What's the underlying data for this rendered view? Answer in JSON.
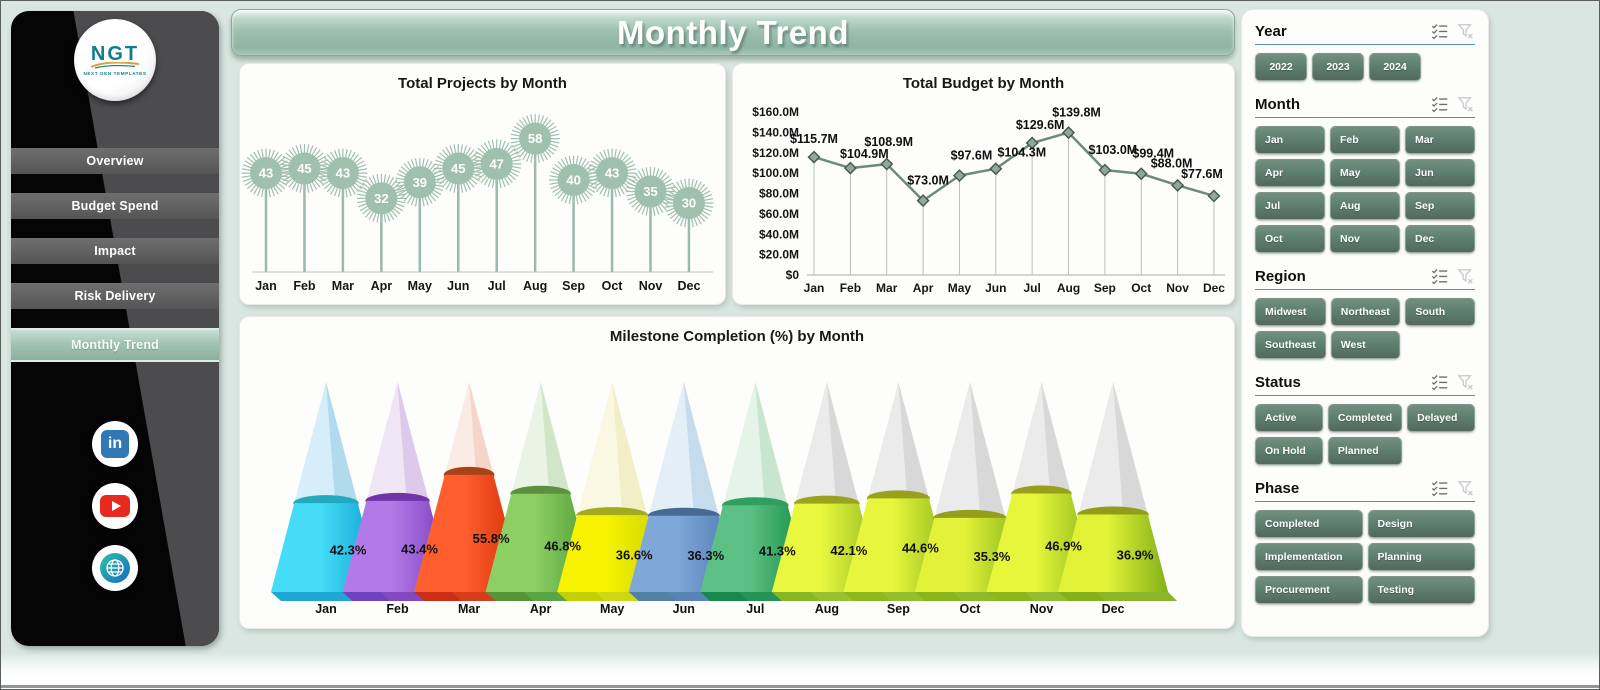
{
  "header": {
    "title": "Monthly Trend"
  },
  "sidebar": {
    "logo": {
      "text": "NGT",
      "subtext": "NEXT GEN TEMPLATES"
    },
    "nav_items": [
      {
        "label": "Overview",
        "active": false
      },
      {
        "label": "Budget Spend",
        "active": false
      },
      {
        "label": "Impact",
        "active": false
      },
      {
        "label": "Risk Delivery",
        "active": false
      },
      {
        "label": "Monthly Trend",
        "active": true
      }
    ],
    "social_icons": [
      "linkedin-icon",
      "youtube-icon",
      "website-icon"
    ]
  },
  "filters": {
    "section_icons": [
      "select-all-icon",
      "clear-filter-icon"
    ],
    "accent_underline": "#58919f",
    "button_color": "#5e8070",
    "sections": [
      {
        "title": "Year",
        "layout": "fit",
        "items": [
          "2022",
          "2023",
          "2024"
        ]
      },
      {
        "title": "Month",
        "layout": "cols-3",
        "items": [
          "Jan",
          "Feb",
          "Mar",
          "Apr",
          "May",
          "Jun",
          "Jul",
          "Aug",
          "Sep",
          "Oct",
          "Nov",
          "Dec"
        ]
      },
      {
        "title": "Region",
        "layout": "cols-3",
        "items": [
          "Midwest",
          "Northeast",
          "South",
          "Southeast",
          "West"
        ]
      },
      {
        "title": "Status",
        "layout": "cols-3",
        "items": [
          "Active",
          "Completed",
          "Delayed",
          "On Hold",
          "Planned"
        ]
      },
      {
        "title": "Phase",
        "layout": "cols-2",
        "items": [
          "Completed",
          "Design",
          "Implementation",
          "Planning",
          "Procurement",
          "Testing"
        ]
      }
    ]
  },
  "chart_data": [
    {
      "type": "lollipop",
      "title": "Total Projects by Month",
      "categories": [
        "Jan",
        "Feb",
        "Mar",
        "Apr",
        "May",
        "Jun",
        "Jul",
        "Aug",
        "Sep",
        "Oct",
        "Nov",
        "Dec"
      ],
      "values": [
        43,
        45,
        43,
        32,
        39,
        45,
        47,
        58,
        40,
        43,
        35,
        30
      ],
      "marker_color": "#9fc0ad",
      "stem_color": "#9cb9a9",
      "ylim": [
        0,
        65
      ],
      "grid": false
    },
    {
      "type": "line",
      "title": "Total Budget by Month",
      "categories": [
        "Jan",
        "Feb",
        "Mar",
        "Apr",
        "May",
        "Jun",
        "Jul",
        "Aug",
        "Sep",
        "Oct",
        "Nov",
        "Dec"
      ],
      "values": [
        115.7,
        104.9,
        108.9,
        73.0,
        97.6,
        104.3,
        129.6,
        139.8,
        103.0,
        99.4,
        88.0,
        77.6
      ],
      "point_labels": [
        "$115.7M",
        "$104.9M",
        "$108.9M",
        "$73.0M",
        "$97.6M",
        "$104.3M",
        "$129.6M",
        "$139.8M",
        "$103.0M",
        "$99.4M",
        "$88.0M",
        "$77.6M"
      ],
      "y_ticks": [
        "$160.0M",
        "$140.0M",
        "$120.0M",
        "$100.0M",
        "$80.0M",
        "$60.0M",
        "$40.0M",
        "$20.0M",
        "$0"
      ],
      "ylim": [
        0,
        160
      ],
      "line_color": "#6e8a7c",
      "marker_color": "#8fa899",
      "marker_stroke": "#46564e",
      "drop_line_color": "#b9c1bc",
      "grid": false,
      "legend": "none"
    },
    {
      "type": "cone",
      "title": "Milestone Completion (%) by Month",
      "categories": [
        "Jan",
        "Feb",
        "Mar",
        "Apr",
        "May",
        "Jun",
        "Jul",
        "Aug",
        "Sep",
        "Oct",
        "Nov",
        "Dec"
      ],
      "values": [
        42.3,
        43.4,
        55.8,
        46.8,
        36.6,
        36.3,
        41.3,
        42.1,
        44.6,
        35.3,
        46.9,
        36.9
      ],
      "point_labels": [
        "42.3%",
        "43.4%",
        "55.8%",
        "46.8%",
        "36.6%",
        "36.3%",
        "41.3%",
        "42.1%",
        "44.6%",
        "35.3%",
        "46.9%",
        "36.9%"
      ],
      "ylim": [
        0,
        100
      ],
      "cone_colors": [
        {
          "bright": "#45dcf8",
          "dark": "#0c9fd0",
          "lid": "#23a9bd",
          "tip": "#b5e2f5",
          "tip_dark": "#8fc6e2"
        },
        {
          "bright": "#b27ae6",
          "dark": "#7a3abc",
          "lid": "#6e34a8",
          "tip": "#e4d2ec",
          "tip_dark": "#cbaedd"
        },
        {
          "bright": "#ff5f2e",
          "dark": "#d22c06",
          "lid": "#a84318",
          "tip": "#f8dcd0",
          "tip_dark": "#efc0ae"
        },
        {
          "bright": "#8ccf63",
          "dark": "#4b9c35",
          "lid": "#5c8f3f",
          "tip": "#d8ecd0",
          "tip_dark": "#b9d8ac"
        },
        {
          "bright": "#f6f200",
          "dark": "#c9d400",
          "lid": "#a2aa1e",
          "tip": "#f8f4cc",
          "tip_dark": "#eae3a8"
        },
        {
          "bright": "#7fa7d8",
          "dark": "#4a78ae",
          "lid": "#476a92",
          "tip": "#cde2f2",
          "tip_dark": "#a9c7e0"
        },
        {
          "bright": "#5cc084",
          "dark": "#118a44",
          "lid": "#2f9e5e",
          "tip": "#d2ecd8",
          "tip_dark": "#abd6b8"
        },
        {
          "bright": "#e9f83e",
          "dark": "#90bb20",
          "lid": "#99a31d",
          "tip": "#dddddd",
          "tip_dark": "#c6c6c6"
        },
        {
          "bright": "#e7f63c",
          "dark": "#8cb81c",
          "lid": "#97a11c",
          "tip": "#dddddd",
          "tip_dark": "#c6c6c6"
        },
        {
          "bright": "#e2f238",
          "dark": "#86b41a",
          "lid": "#939e1a",
          "tip": "#dddddd",
          "tip_dark": "#c6c6c6"
        },
        {
          "bright": "#e6f63a",
          "dark": "#8ab61c",
          "lid": "#96a01b",
          "tip": "#dddddd",
          "tip_dark": "#c6c6c6"
        },
        {
          "bright": "#e1f236",
          "dark": "#82b018",
          "lid": "#919c19",
          "tip": "#dddddd",
          "tip_dark": "#c6c6c6"
        }
      ]
    }
  ]
}
